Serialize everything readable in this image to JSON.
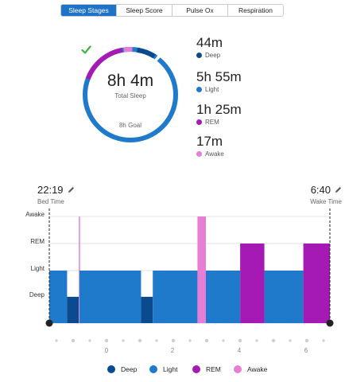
{
  "tabs": [
    {
      "label": "Sleep Stages",
      "active": true
    },
    {
      "label": "Sleep Score",
      "active": false
    },
    {
      "label": "Pulse Ox",
      "active": false
    },
    {
      "label": "Respiration",
      "active": false
    }
  ],
  "summary_ring": {
    "total": "8h 4m",
    "total_label": "Total Sleep",
    "goal_label": "8h Goal",
    "check_icon": "check-icon"
  },
  "stages": [
    {
      "key": "deep",
      "value": "44m",
      "label": "Deep",
      "color": "#0b4a8f",
      "minutes": 44
    },
    {
      "key": "light",
      "value": "5h 55m",
      "label": "Light",
      "color": "#1f7acb",
      "minutes": 355
    },
    {
      "key": "rem",
      "value": "1h 25m",
      "label": "REM",
      "color": "#a51ab4",
      "minutes": 85
    },
    {
      "key": "awake",
      "value": "17m",
      "label": "Awake",
      "color": "#e67ed5",
      "minutes": 17
    }
  ],
  "bed_time": {
    "time": "22:19",
    "label": "Bed Time",
    "icon": "pencil-icon"
  },
  "wake_time": {
    "time": "6:40",
    "label": "Wake Time",
    "icon": "pencil-icon"
  },
  "chart_data": {
    "type": "timeline",
    "y_levels": [
      "Awake",
      "REM",
      "Light",
      "Deep"
    ],
    "x_tick_labels": [
      "0",
      "2",
      "4",
      "6"
    ],
    "x_unit": "hours",
    "segments": [
      {
        "stage": "Light",
        "start": 22.32,
        "end": 22.85
      },
      {
        "stage": "Deep",
        "start": 22.85,
        "end": 23.2
      },
      {
        "stage": "Awake",
        "start": 23.2,
        "end": 23.22
      },
      {
        "stage": "Light",
        "start": 23.22,
        "end": 25.05
      },
      {
        "stage": "Deep",
        "start": 25.05,
        "end": 25.4
      },
      {
        "stage": "Light",
        "start": 25.4,
        "end": 26.73
      },
      {
        "stage": "Awake",
        "start": 26.73,
        "end": 26.98
      },
      {
        "stage": "Light",
        "start": 26.98,
        "end": 28.0
      },
      {
        "stage": "REM",
        "start": 28.0,
        "end": 28.72
      },
      {
        "stage": "Light",
        "start": 28.72,
        "end": 29.88
      },
      {
        "stage": "REM",
        "start": 29.88,
        "end": 30.67
      }
    ],
    "legend": [
      "Deep",
      "Light",
      "REM",
      "Awake"
    ]
  }
}
